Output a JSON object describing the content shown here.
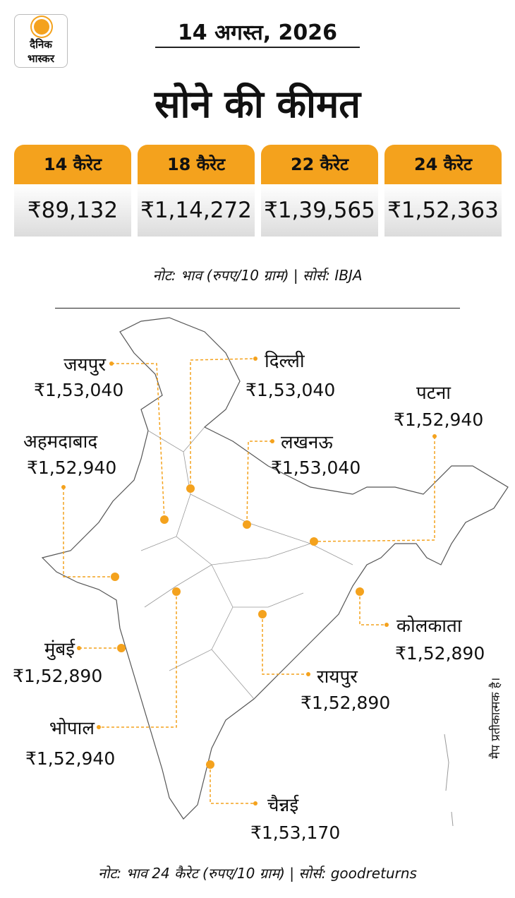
{
  "logo": {
    "line1": "दैनिक",
    "line2": "भास्कर"
  },
  "header": {
    "date": "14 अगस्त, 2026",
    "title": "सोने की कीमत"
  },
  "karats": [
    {
      "label": "14 कैरेट",
      "price": "₹89,132"
    },
    {
      "label": "18 कैरेट",
      "price": "₹1,14,272"
    },
    {
      "label": "22 कैरेट",
      "price": "₹1,39,565"
    },
    {
      "label": "24 कैरेट",
      "price": "₹1,52,363"
    }
  ],
  "note_top": "नोट: भाव (रुपए/10 ग्राम) | सोर्स: IBJA",
  "cities": [
    {
      "name": "जयपुर",
      "price": "₹1,53,040"
    },
    {
      "name": "दिल्ली",
      "price": "₹1,53,040"
    },
    {
      "name": "पटना",
      "price": "₹1,52,940"
    },
    {
      "name": "अहमदाबाद",
      "price": "₹1,52,940"
    },
    {
      "name": "लखनऊ",
      "price": "₹1,53,040"
    },
    {
      "name": "कोलकाता",
      "price": "₹1,52,890"
    },
    {
      "name": "मुंबई",
      "price": "₹1,52,890"
    },
    {
      "name": "रायपुर",
      "price": "₹1,52,890"
    },
    {
      "name": "भोपाल",
      "price": "₹1,52,940"
    },
    {
      "name": "चैन्नई",
      "price": "₹1,53,170"
    }
  ],
  "map_disclaimer": "मैप प्रतीकात्मक है।",
  "note_bottom": "नोट: भाव 24 कैरेट (रुपए/10 ग्राम) | सोर्स: goodreturns"
}
